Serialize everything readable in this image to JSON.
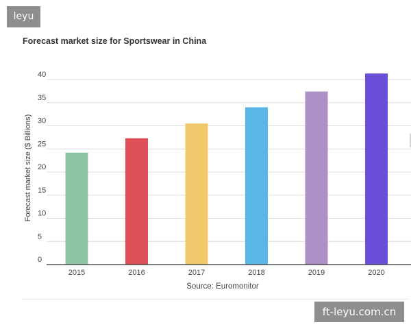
{
  "watermark": {
    "top_left": "leyu",
    "bottom_right": "ft-leyu.com.cn"
  },
  "chart_data": {
    "type": "bar",
    "title": "Forecast market size for Sportswear in China",
    "xlabel": "",
    "ylabel": "Forecast market size ($ Billions)",
    "source": "Source: Euromonitor",
    "categories": [
      "2015",
      "2016",
      "2017",
      "2018",
      "2019",
      "2020"
    ],
    "values": [
      24.2,
      27.3,
      30.5,
      34.0,
      37.4,
      41.3
    ],
    "colors": [
      "#8cc5a4",
      "#df4f57",
      "#f1c96d",
      "#5ab6e6",
      "#ad90c6",
      "#6a4fd9"
    ],
    "ylim": [
      0,
      40
    ],
    "yticks": [
      "0",
      "5",
      "10",
      "15",
      "20",
      "25",
      "30",
      "35",
      "40"
    ],
    "grid": true
  }
}
